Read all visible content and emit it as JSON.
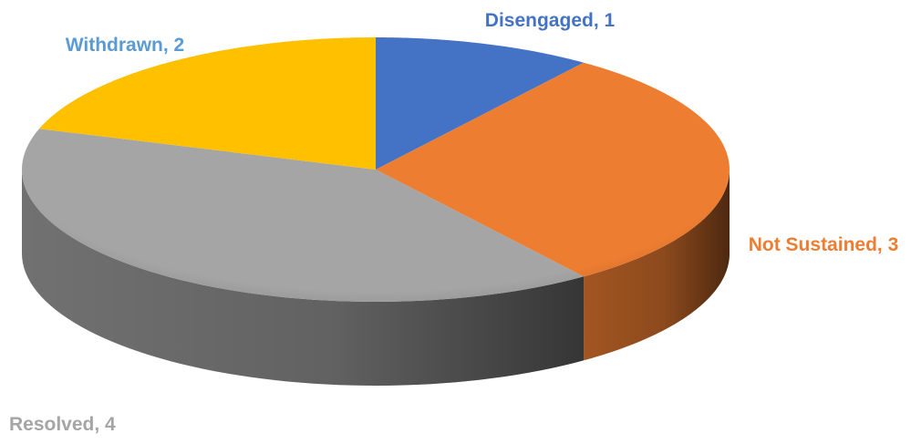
{
  "chart_data": {
    "type": "pie",
    "style": "3d",
    "categories": [
      "Disengaged",
      "Not Sustained",
      "Resolved",
      "Withdrawn"
    ],
    "values": [
      1,
      3,
      4,
      2
    ],
    "colors": [
      "#4472C4",
      "#ED7D31",
      "#A5A5A5",
      "#FFC000"
    ],
    "labels": [
      "Disengaged, 1",
      "Not Sustained, 3",
      "Resolved, 4",
      "Withdrawn, 2"
    ],
    "label_colors": [
      "#4472C4",
      "#ED7D31",
      "#A5A5A5",
      "#5B9BD5"
    ],
    "legend": "none"
  }
}
